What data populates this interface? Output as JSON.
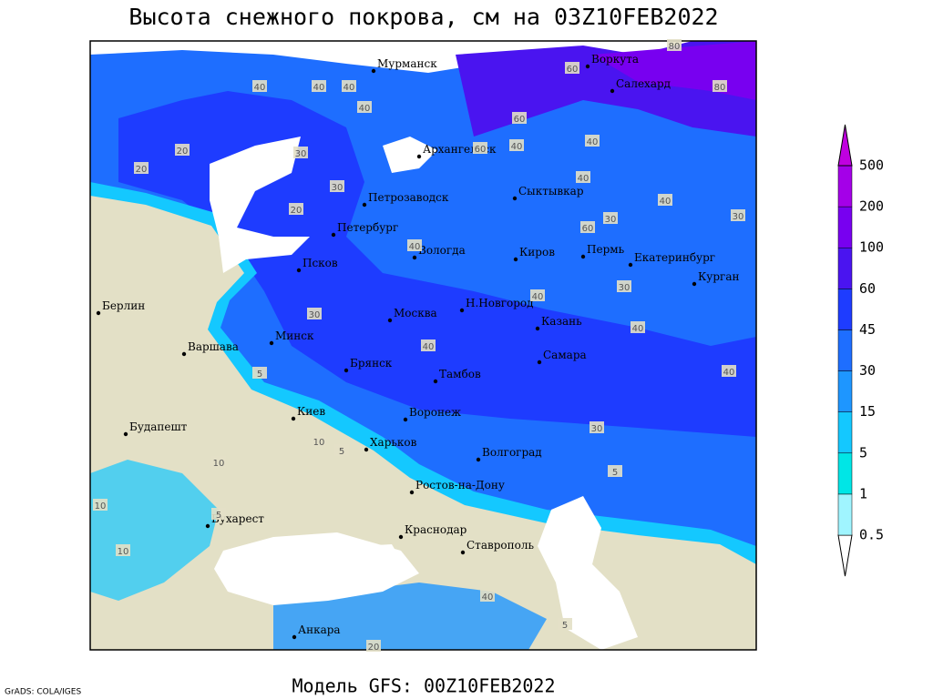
{
  "title": "Высота снежного покрова, см на 03Z10FEB2022",
  "footer": "Модель GFS: 00Z10FEB2022",
  "credit": "GrADS: COLA/IGES",
  "cities": [
    "Мурманск",
    "Воркута",
    "Салехард",
    "Архангельск",
    "Сыктывкар",
    "Петрозаводск",
    "Петербург",
    "Вологда",
    "Киров",
    "Пермь",
    "Екатеринбург",
    "Курган",
    "Псков",
    "Н.Новгород",
    "Казань",
    "Берлин",
    "Варшава",
    "Минск",
    "Москва",
    "Самара",
    "Брянск",
    "Тамбов",
    "Киев",
    "Воронеж",
    "Будапешт",
    "Харьков",
    "Волгоград",
    "Ростов-на-Дону",
    "Бухарест",
    "Краснодар",
    "Ставрополь",
    "Анкара"
  ],
  "contour_labels": [
    40,
    40,
    40,
    40,
    20,
    20,
    30,
    30,
    60,
    60,
    60,
    80,
    80,
    40,
    40,
    40,
    40,
    30,
    30,
    60,
    40,
    40,
    40,
    40,
    30,
    30,
    40,
    30,
    20,
    10,
    10,
    5,
    5,
    5,
    10,
    10,
    40,
    20,
    5,
    5
  ],
  "legend": {
    "levels": [
      0.5,
      1,
      5,
      15,
      30,
      45,
      60,
      100,
      200,
      500
    ],
    "colors": [
      "#ffffff",
      "#a0f5ff",
      "#00e6e6",
      "#14c8ff",
      "#1e96ff",
      "#1e6eff",
      "#1e3cff",
      "#4a14f0",
      "#7800f0",
      "#a400e8",
      "#c000e0"
    ]
  }
}
